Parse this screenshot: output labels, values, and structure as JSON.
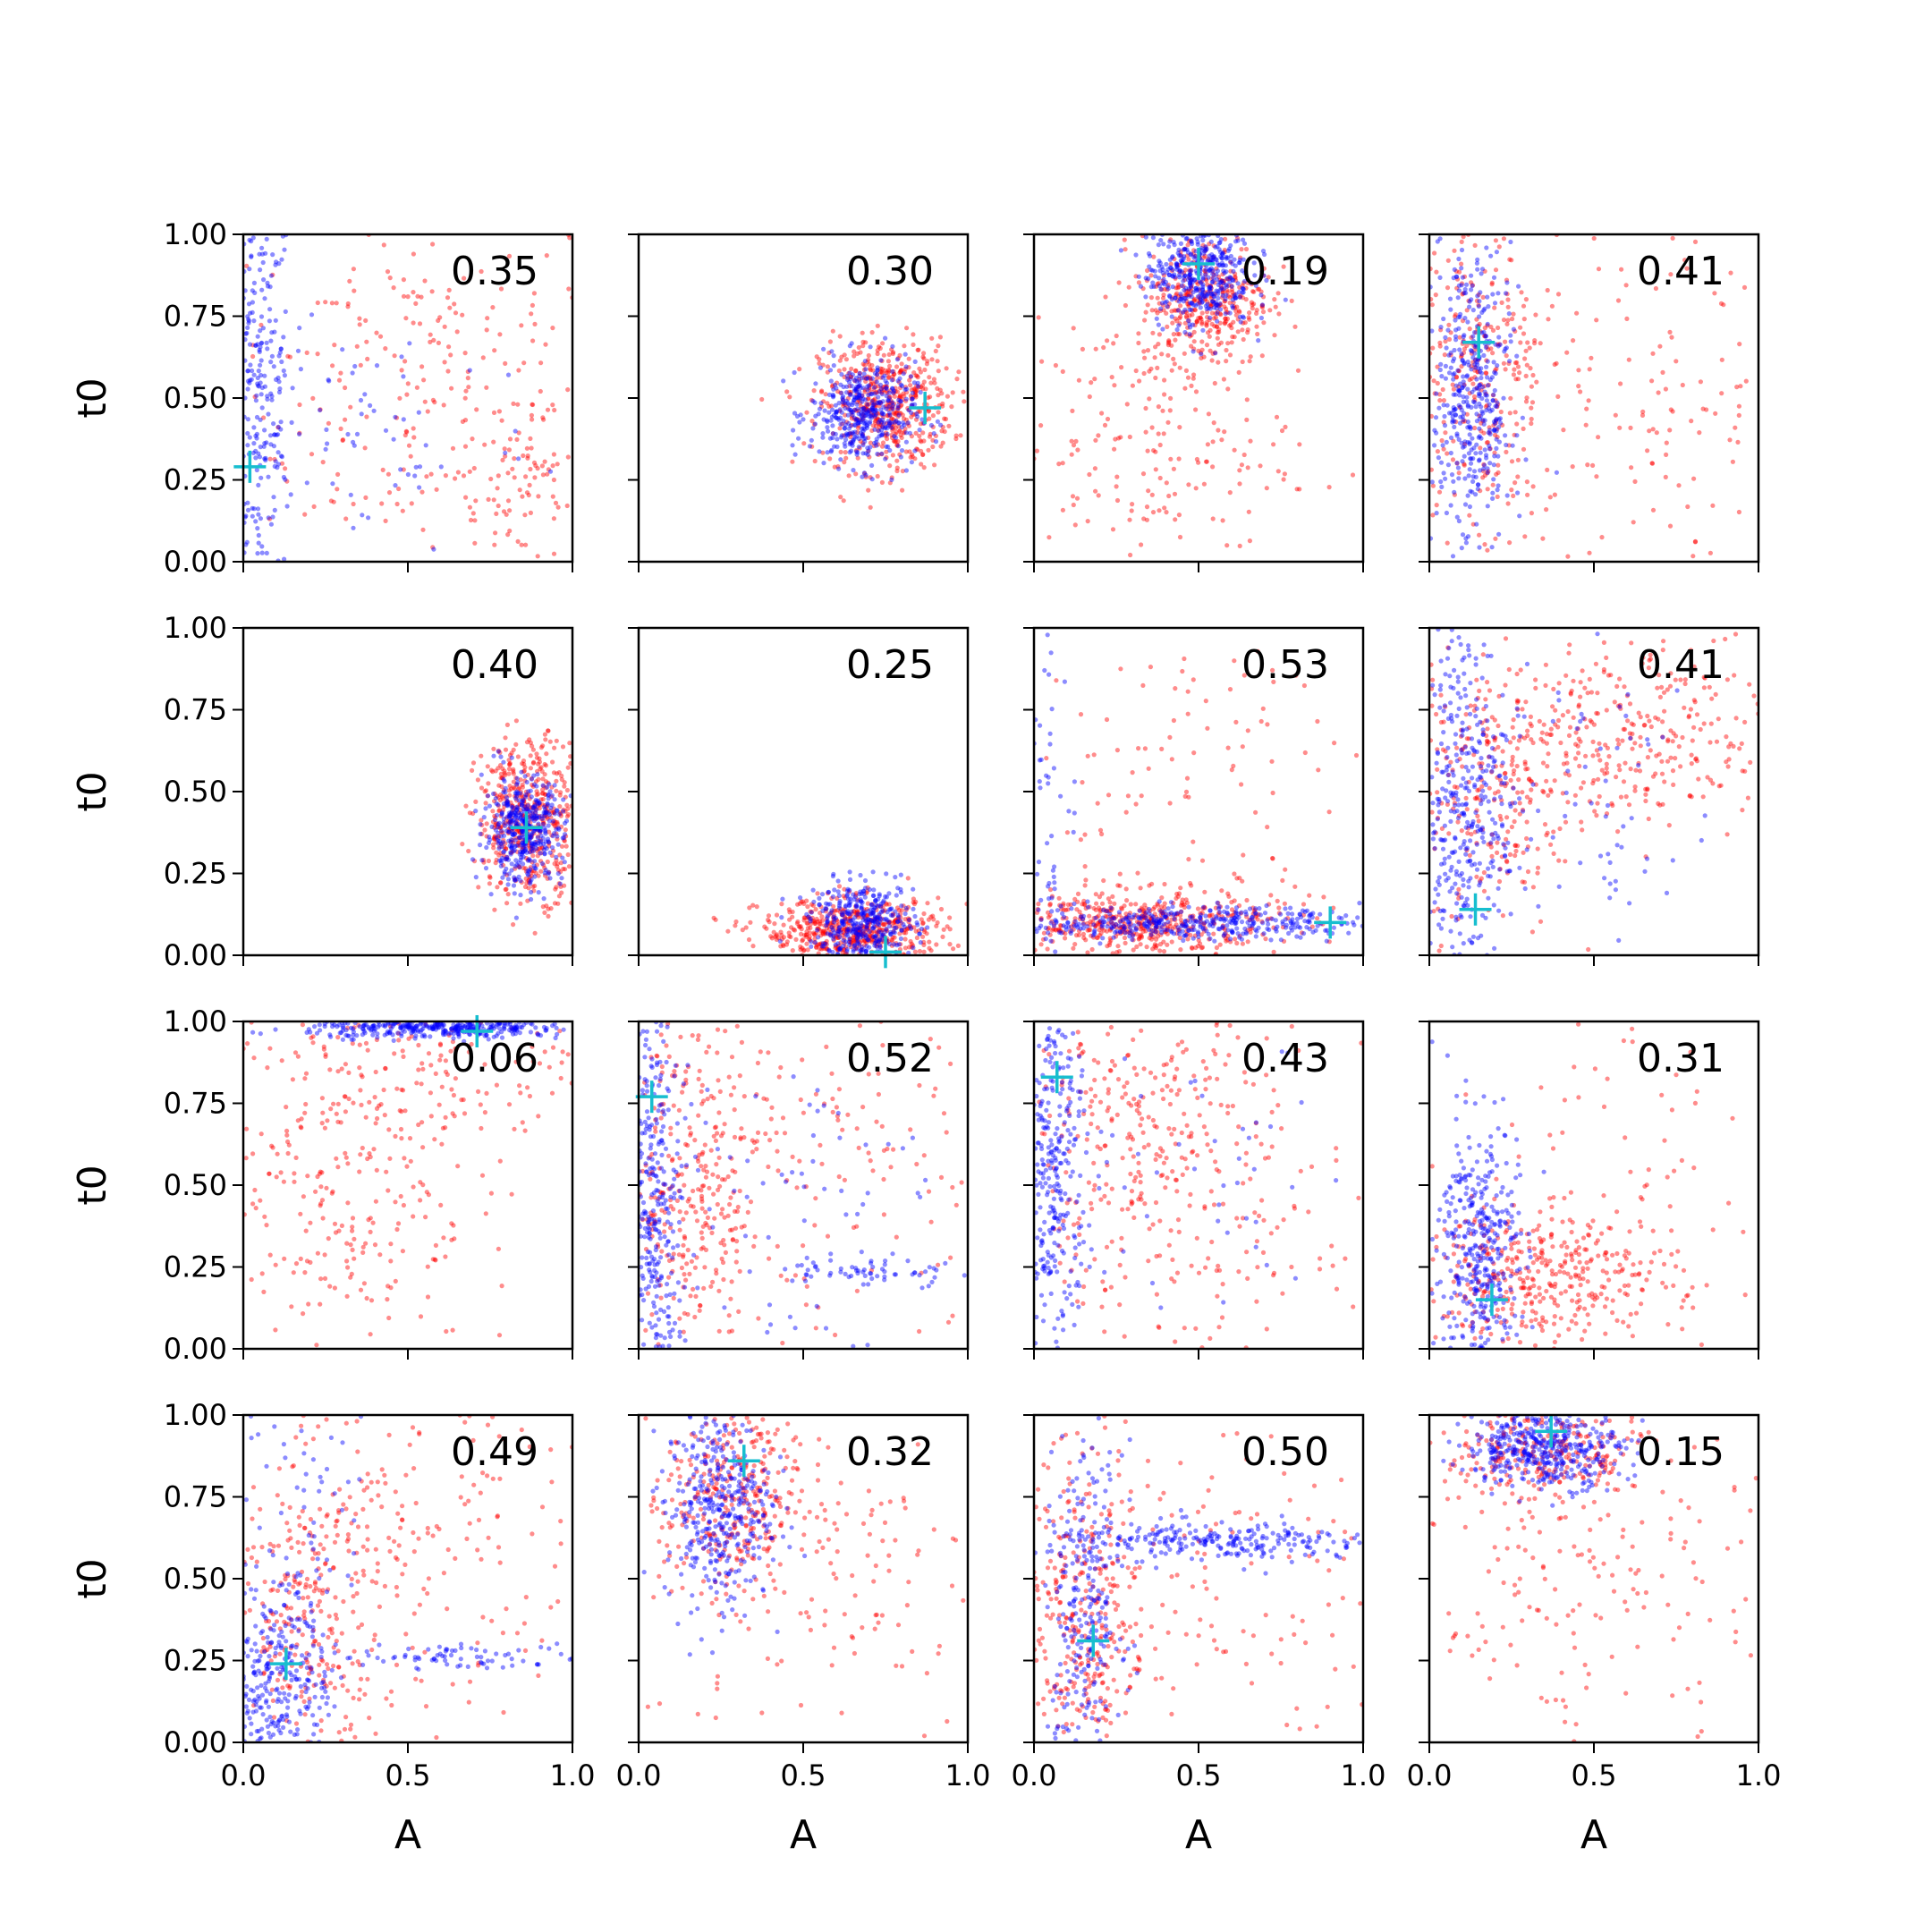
{
  "chart_data": {
    "type": "scatter",
    "layout_grid": {
      "rows": 4,
      "cols": 4
    },
    "xlabel": "A",
    "ylabel": "t0",
    "xlim": [
      0.0,
      1.0
    ],
    "ylim": [
      0.0,
      1.0
    ],
    "xticks": [
      "0.0",
      "0.5",
      "1.0"
    ],
    "yticks": [
      "0.00",
      "0.25",
      "0.50",
      "0.75",
      "1.00"
    ],
    "grid": false,
    "series_colors": {
      "blue": "#0000ff",
      "red": "#ff0000",
      "marker": "#17becf"
    },
    "panels": [
      {
        "label": "0.35",
        "marker": [
          0.02,
          0.29
        ],
        "blue": [
          {
            "cx": 0.05,
            "cy": 0.5,
            "sx": 0.05,
            "sy": 0.32,
            "n": 260
          },
          {
            "cx": 0.4,
            "cy": 0.4,
            "sx": 0.25,
            "sy": 0.2,
            "n": 60
          }
        ],
        "red": [
          {
            "cx": 0.55,
            "cy": 0.55,
            "sx": 0.3,
            "sy": 0.3,
            "n": 260
          },
          {
            "cx": 0.85,
            "cy": 0.2,
            "sx": 0.1,
            "sy": 0.12,
            "n": 80
          }
        ]
      },
      {
        "label": "0.30",
        "marker": [
          0.87,
          0.47
        ],
        "blue": [
          {
            "cx": 0.68,
            "cy": 0.45,
            "sx": 0.08,
            "sy": 0.08,
            "n": 420
          }
        ],
        "red": [
          {
            "cx": 0.75,
            "cy": 0.48,
            "sx": 0.1,
            "sy": 0.1,
            "n": 520
          }
        ]
      },
      {
        "label": "0.19",
        "marker": [
          0.5,
          0.91
        ],
        "blue": [
          {
            "cx": 0.5,
            "cy": 0.88,
            "sx": 0.08,
            "sy": 0.08,
            "n": 420
          }
        ],
        "red": [
          {
            "cx": 0.52,
            "cy": 0.8,
            "sx": 0.1,
            "sy": 0.1,
            "n": 400
          },
          {
            "cx": 0.35,
            "cy": 0.35,
            "sx": 0.22,
            "sy": 0.2,
            "n": 180
          }
        ]
      },
      {
        "label": "0.41",
        "marker": [
          0.15,
          0.67
        ],
        "blue": [
          {
            "cx": 0.13,
            "cy": 0.5,
            "sx": 0.06,
            "sy": 0.25,
            "n": 420
          }
        ],
        "red": [
          {
            "cx": 0.15,
            "cy": 0.55,
            "sx": 0.1,
            "sy": 0.25,
            "n": 300
          },
          {
            "cx": 0.6,
            "cy": 0.5,
            "sx": 0.3,
            "sy": 0.3,
            "n": 160
          }
        ]
      },
      {
        "label": "0.40",
        "marker": [
          0.86,
          0.39
        ],
        "blue": [
          {
            "cx": 0.85,
            "cy": 0.38,
            "sx": 0.06,
            "sy": 0.08,
            "n": 420
          }
        ],
        "red": [
          {
            "cx": 0.87,
            "cy": 0.42,
            "sx": 0.08,
            "sy": 0.12,
            "n": 520
          }
        ]
      },
      {
        "label": "0.25",
        "marker": [
          0.75,
          0.01
        ],
        "blue": [
          {
            "cx": 0.68,
            "cy": 0.1,
            "sx": 0.08,
            "sy": 0.06,
            "n": 380
          }
        ],
        "red": [
          {
            "cx": 0.65,
            "cy": 0.07,
            "sx": 0.14,
            "sy": 0.05,
            "n": 560
          }
        ]
      },
      {
        "label": "0.53",
        "marker": [
          0.9,
          0.1
        ],
        "blue": [
          {
            "cx": 0.45,
            "cy": 0.1,
            "sx": 0.28,
            "sy": 0.025,
            "n": 420
          },
          {
            "cx": 0.05,
            "cy": 0.5,
            "sx": 0.04,
            "sy": 0.3,
            "n": 60
          }
        ],
        "red": [
          {
            "cx": 0.3,
            "cy": 0.1,
            "sx": 0.22,
            "sy": 0.05,
            "n": 520
          },
          {
            "cx": 0.5,
            "cy": 0.5,
            "sx": 0.3,
            "sy": 0.3,
            "n": 120
          }
        ]
      },
      {
        "label": "0.41",
        "marker": [
          0.14,
          0.14
        ],
        "blue": [
          {
            "cx": 0.1,
            "cy": 0.45,
            "sx": 0.07,
            "sy": 0.3,
            "n": 380
          },
          {
            "cx": 0.4,
            "cy": 0.5,
            "sx": 0.25,
            "sy": 0.25,
            "n": 80
          }
        ],
        "red": [
          {
            "cx": 0.5,
            "cy": 0.65,
            "sx": 0.3,
            "sy": 0.15,
            "n": 420
          },
          {
            "cx": 0.2,
            "cy": 0.45,
            "sx": 0.1,
            "sy": 0.2,
            "n": 160
          }
        ]
      },
      {
        "label": "0.06",
        "marker": [
          0.71,
          0.97
        ],
        "blue": [
          {
            "cx": 0.6,
            "cy": 0.98,
            "sx": 0.2,
            "sy": 0.015,
            "n": 380
          }
        ],
        "red": [
          {
            "cx": 0.3,
            "cy": 0.55,
            "sx": 0.2,
            "sy": 0.3,
            "n": 280
          },
          {
            "cx": 0.6,
            "cy": 0.85,
            "sx": 0.25,
            "sy": 0.12,
            "n": 120
          }
        ]
      },
      {
        "label": "0.52",
        "marker": [
          0.04,
          0.77
        ],
        "blue": [
          {
            "cx": 0.05,
            "cy": 0.45,
            "sx": 0.04,
            "sy": 0.3,
            "n": 320
          },
          {
            "cx": 0.7,
            "cy": 0.23,
            "sx": 0.15,
            "sy": 0.02,
            "n": 60
          },
          {
            "cx": 0.4,
            "cy": 0.45,
            "sx": 0.25,
            "sy": 0.25,
            "n": 80
          }
        ],
        "red": [
          {
            "cx": 0.15,
            "cy": 0.45,
            "sx": 0.12,
            "sy": 0.3,
            "n": 320
          },
          {
            "cx": 0.55,
            "cy": 0.6,
            "sx": 0.3,
            "sy": 0.3,
            "n": 180
          }
        ]
      },
      {
        "label": "0.43",
        "marker": [
          0.07,
          0.83
        ],
        "blue": [
          {
            "cx": 0.06,
            "cy": 0.55,
            "sx": 0.05,
            "sy": 0.3,
            "n": 340
          },
          {
            "cx": 0.45,
            "cy": 0.5,
            "sx": 0.3,
            "sy": 0.3,
            "n": 60
          }
        ],
        "red": [
          {
            "cx": 0.3,
            "cy": 0.65,
            "sx": 0.2,
            "sy": 0.25,
            "n": 300
          },
          {
            "cx": 0.6,
            "cy": 0.4,
            "sx": 0.3,
            "sy": 0.3,
            "n": 120
          }
        ]
      },
      {
        "label": "0.31",
        "marker": [
          0.19,
          0.15
        ],
        "blue": [
          {
            "cx": 0.15,
            "cy": 0.3,
            "sx": 0.06,
            "sy": 0.2,
            "n": 380
          }
        ],
        "red": [
          {
            "cx": 0.35,
            "cy": 0.22,
            "sx": 0.2,
            "sy": 0.1,
            "n": 380
          },
          {
            "cx": 0.6,
            "cy": 0.5,
            "sx": 0.3,
            "sy": 0.3,
            "n": 80
          }
        ]
      },
      {
        "label": "0.49",
        "marker": [
          0.13,
          0.24
        ],
        "blue": [
          {
            "cx": 0.1,
            "cy": 0.2,
            "sx": 0.08,
            "sy": 0.15,
            "n": 320
          },
          {
            "cx": 0.65,
            "cy": 0.26,
            "sx": 0.25,
            "sy": 0.02,
            "n": 80
          },
          {
            "cx": 0.2,
            "cy": 0.7,
            "sx": 0.1,
            "sy": 0.25,
            "n": 60
          }
        ],
        "red": [
          {
            "cx": 0.2,
            "cy": 0.4,
            "sx": 0.12,
            "sy": 0.25,
            "n": 280
          },
          {
            "cx": 0.55,
            "cy": 0.6,
            "sx": 0.3,
            "sy": 0.3,
            "n": 180
          }
        ]
      },
      {
        "label": "0.32",
        "marker": [
          0.32,
          0.86
        ],
        "blue": [
          {
            "cx": 0.24,
            "cy": 0.72,
            "sx": 0.08,
            "sy": 0.15,
            "n": 380
          }
        ],
        "red": [
          {
            "cx": 0.28,
            "cy": 0.75,
            "sx": 0.1,
            "sy": 0.15,
            "n": 300
          },
          {
            "cx": 0.55,
            "cy": 0.55,
            "sx": 0.28,
            "sy": 0.28,
            "n": 160
          }
        ]
      },
      {
        "label": "0.50",
        "marker": [
          0.18,
          0.31
        ],
        "blue": [
          {
            "cx": 0.55,
            "cy": 0.61,
            "sx": 0.25,
            "sy": 0.03,
            "n": 260
          },
          {
            "cx": 0.15,
            "cy": 0.4,
            "sx": 0.06,
            "sy": 0.25,
            "n": 240
          }
        ],
        "red": [
          {
            "cx": 0.15,
            "cy": 0.4,
            "sx": 0.1,
            "sy": 0.25,
            "n": 320
          },
          {
            "cx": 0.5,
            "cy": 0.5,
            "sx": 0.3,
            "sy": 0.3,
            "n": 140
          }
        ]
      },
      {
        "label": "0.15",
        "marker": [
          0.37,
          0.95
        ],
        "blue": [
          {
            "cx": 0.35,
            "cy": 0.9,
            "sx": 0.12,
            "sy": 0.06,
            "n": 420
          }
        ],
        "red": [
          {
            "cx": 0.35,
            "cy": 0.88,
            "sx": 0.15,
            "sy": 0.08,
            "n": 260
          },
          {
            "cx": 0.45,
            "cy": 0.45,
            "sx": 0.28,
            "sy": 0.25,
            "n": 180
          }
        ]
      }
    ]
  }
}
